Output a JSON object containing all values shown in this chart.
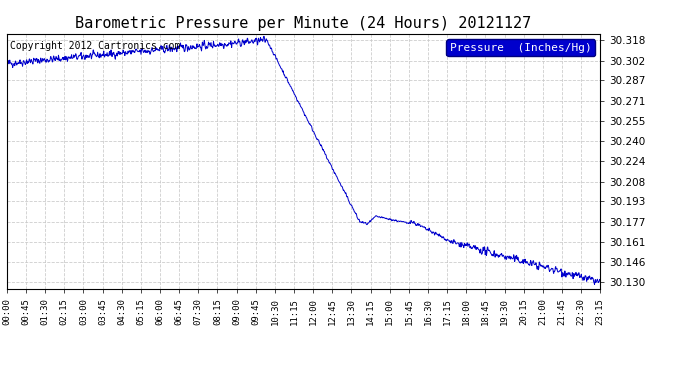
{
  "title": "Barometric Pressure per Minute (24 Hours) 20121127",
  "copyright": "Copyright 2012 Cartronics.com",
  "legend_label": "Pressure  (Inches/Hg)",
  "line_color": "#0000cc",
  "background_color": "#ffffff",
  "plot_bg_color": "#ffffff",
  "grid_color": "#c8c8c8",
  "yticks": [
    30.13,
    30.146,
    30.161,
    30.177,
    30.193,
    30.208,
    30.224,
    30.24,
    30.255,
    30.271,
    30.287,
    30.302,
    30.318
  ],
  "xtick_labels": [
    "00:00",
    "00:45",
    "01:30",
    "02:15",
    "03:00",
    "03:45",
    "04:30",
    "05:15",
    "06:00",
    "06:45",
    "07:30",
    "08:15",
    "09:00",
    "09:45",
    "10:30",
    "11:15",
    "12:00",
    "12:45",
    "13:30",
    "14:15",
    "15:00",
    "15:45",
    "16:30",
    "17:15",
    "18:00",
    "18:45",
    "19:30",
    "20:15",
    "21:00",
    "21:45",
    "22:30",
    "23:15"
  ],
  "ylim": [
    30.125,
    30.323
  ],
  "num_points": 1440,
  "border_color": "#000000",
  "title_fontsize": 11,
  "copyright_fontsize": 7,
  "ytick_fontsize": 7.5,
  "xtick_fontsize": 6.5
}
